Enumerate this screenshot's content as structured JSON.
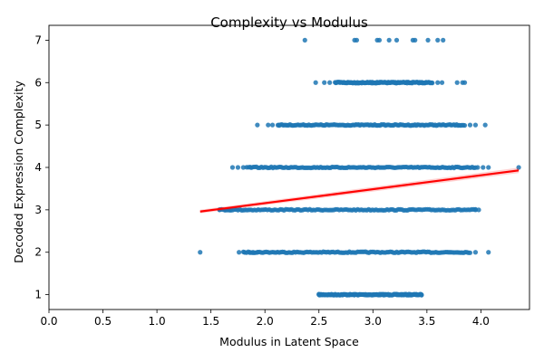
{
  "chart_data": {
    "type": "scatter",
    "title": "Complexity vs Modulus",
    "xlabel": "Modulus in Latent Space",
    "ylabel": "Decoded Expression Complexity",
    "xlim": [
      0.0,
      4.45
    ],
    "ylim": [
      0.65,
      7.35
    ],
    "xticks": [
      "0.0",
      "0.5",
      "1.0",
      "1.5",
      "2.0",
      "2.5",
      "3.0",
      "3.5",
      "4.0"
    ],
    "yticks": [
      "1",
      "2",
      "3",
      "4",
      "5",
      "6",
      "7"
    ],
    "grid": false,
    "point_color": "#1f77b4",
    "regression_color": "#ff0000",
    "regression": {
      "x": [
        1.4,
        4.35
      ],
      "y": [
        2.96,
        3.93
      ]
    },
    "series": [
      {
        "y": 1,
        "xmin": 2.5,
        "xmax": 3.45,
        "sparse_x": [
          2.5,
          2.53,
          2.62,
          2.68,
          2.72,
          2.79,
          2.83,
          2.96,
          3.03,
          3.09,
          3.16,
          3.22,
          3.27,
          3.34,
          3.4,
          3.45
        ]
      },
      {
        "y": 2,
        "xmin": 1.8,
        "xmax": 3.9,
        "sparse_x": [
          1.4,
          1.76,
          1.81,
          1.86,
          1.89,
          1.93,
          3.95,
          4.07
        ]
      },
      {
        "y": 3,
        "xmin": 1.58,
        "xmax": 3.95,
        "sparse_x": [
          1.58,
          1.63,
          1.67,
          3.95,
          3.98
        ]
      },
      {
        "y": 4,
        "xmin": 1.83,
        "xmax": 3.95,
        "sparse_x": [
          1.7,
          1.75,
          1.8,
          1.87,
          3.97,
          4.02,
          4.07,
          4.35
        ]
      },
      {
        "y": 5,
        "xmin": 2.12,
        "xmax": 3.85,
        "sparse_x": [
          1.93,
          2.03,
          2.07,
          2.13,
          3.9,
          3.95,
          4.04
        ]
      },
      {
        "y": 6,
        "xmin": 2.65,
        "xmax": 3.55,
        "sparse_x": [
          2.47,
          2.55,
          2.6,
          3.6,
          3.64,
          3.78,
          3.83,
          3.85
        ]
      },
      {
        "y": 7,
        "xmin": 2.8,
        "xmax": 2.8,
        "sparse_x": [
          2.37,
          2.83,
          2.85,
          3.04,
          3.06,
          3.15,
          3.22,
          3.37,
          3.39,
          3.51,
          3.6,
          3.65
        ]
      }
    ]
  }
}
